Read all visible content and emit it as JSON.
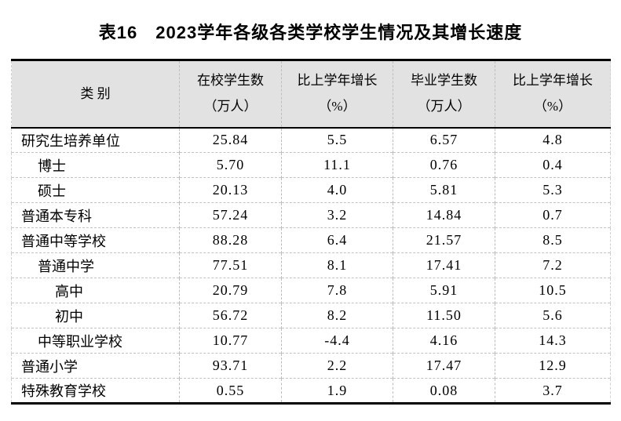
{
  "title": "表16　2023学年各级各类学校学生情况及其增长速度",
  "table": {
    "columns": [
      {
        "id": "category",
        "line1": "类 别",
        "line2": ""
      },
      {
        "id": "enrolled",
        "line1": "在校学生数",
        "line2": "（万人）"
      },
      {
        "id": "enrolled_growth",
        "line1": "比上学年增长",
        "line2": "（%）"
      },
      {
        "id": "graduates",
        "line1": "毕业学生数",
        "line2": "（万人）"
      },
      {
        "id": "graduates_growth",
        "line1": "比上学年增长",
        "line2": "（%）"
      }
    ],
    "rows": [
      {
        "category": "研究生培养单位",
        "indent": 0,
        "enrolled": "25.84",
        "enrolled_growth": "5.5",
        "graduates": "6.57",
        "graduates_growth": "4.8"
      },
      {
        "category": "博士",
        "indent": 1,
        "enrolled": "5.70",
        "enrolled_growth": "11.1",
        "graduates": "0.76",
        "graduates_growth": "0.4"
      },
      {
        "category": "硕士",
        "indent": 1,
        "enrolled": "20.13",
        "enrolled_growth": "4.0",
        "graduates": "5.81",
        "graduates_growth": "5.3"
      },
      {
        "category": "普通本专科",
        "indent": 0,
        "enrolled": "57.24",
        "enrolled_growth": "3.2",
        "graduates": "14.84",
        "graduates_growth": "0.7"
      },
      {
        "category": "普通中等学校",
        "indent": 0,
        "enrolled": "88.28",
        "enrolled_growth": "6.4",
        "graduates": "21.57",
        "graduates_growth": "8.5"
      },
      {
        "category": "普通中学",
        "indent": 1,
        "enrolled": "77.51",
        "enrolled_growth": "8.1",
        "graduates": "17.41",
        "graduates_growth": "7.2"
      },
      {
        "category": "高中",
        "indent": 2,
        "enrolled": "20.79",
        "enrolled_growth": "7.8",
        "graduates": "5.91",
        "graduates_growth": "10.5"
      },
      {
        "category": "初中",
        "indent": 2,
        "enrolled": "56.72",
        "enrolled_growth": "8.2",
        "graduates": "11.50",
        "graduates_growth": "5.6"
      },
      {
        "category": "中等职业学校",
        "indent": 1,
        "enrolled": "10.77",
        "enrolled_growth": "-4.4",
        "graduates": "4.16",
        "graduates_growth": "14.3"
      },
      {
        "category": "普通小学",
        "indent": 0,
        "enrolled": "93.71",
        "enrolled_growth": "2.2",
        "graduates": "17.47",
        "graduates_growth": "12.9"
      },
      {
        "category": "特殊教育学校",
        "indent": 0,
        "enrolled": "0.55",
        "enrolled_growth": "1.9",
        "graduates": "0.08",
        "graduates_growth": "3.7"
      }
    ]
  },
  "colors": {
    "header_background": "#e2e2e2",
    "border_heavy": "#000000",
    "gridline_dashed": "#c3c3c3",
    "text": "#000000"
  }
}
